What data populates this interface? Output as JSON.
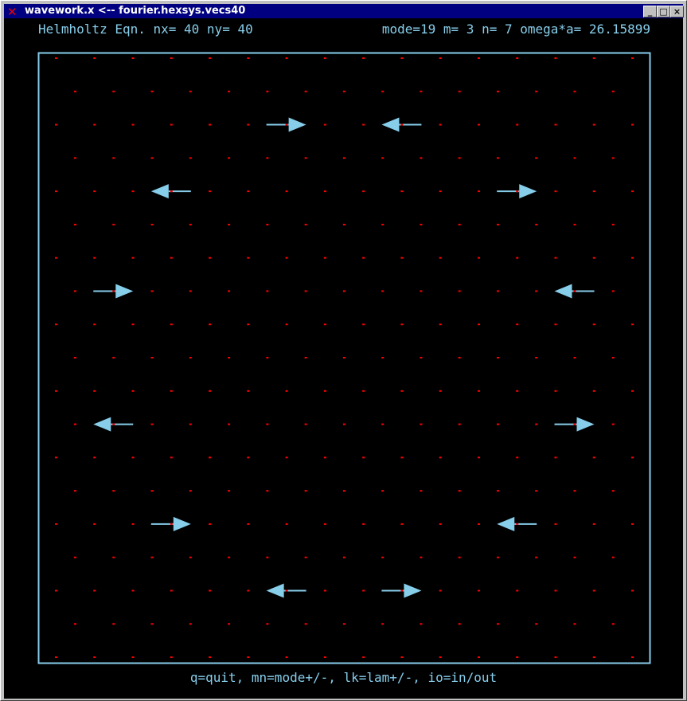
{
  "window": {
    "title": "wavework.x <-- fourier.hexsys.vecs40",
    "minimize": "_",
    "maximize": "□",
    "close": "×"
  },
  "header": {
    "left": "Helmholtz Eqn. nx= 40 ny= 40",
    "right": "mode=19 m= 3 n= 7 omega*a= 26.15899"
  },
  "footer": "q=quit, mn=mode+/-, lk=lam+/-, io=in/out",
  "colors": {
    "frame": "#87ceeb",
    "arrow": "#87ceeb",
    "dot": "#ff0000",
    "text": "#87ceeb",
    "background": "#000000"
  },
  "grid": {
    "rows": 19,
    "even_row_cols": 16,
    "odd_row_cols": 15,
    "type": "hexagonal"
  },
  "vectors": [
    {
      "row": 2,
      "col": 6,
      "dir": 1
    },
    {
      "row": 2,
      "col": 9,
      "dir": -1
    },
    {
      "row": 4,
      "col": 3,
      "dir": -1
    },
    {
      "row": 4,
      "col": 12,
      "dir": 1
    },
    {
      "row": 7,
      "col": 1,
      "dir": 1
    },
    {
      "row": 7,
      "col": 13,
      "dir": -1
    },
    {
      "row": 11,
      "col": 1,
      "dir": -1
    },
    {
      "row": 11,
      "col": 13,
      "dir": 1
    },
    {
      "row": 14,
      "col": 3,
      "dir": 1
    },
    {
      "row": 14,
      "col": 12,
      "dir": -1
    },
    {
      "row": 16,
      "col": 6,
      "dir": -1
    },
    {
      "row": 16,
      "col": 9,
      "dir": 1
    }
  ]
}
